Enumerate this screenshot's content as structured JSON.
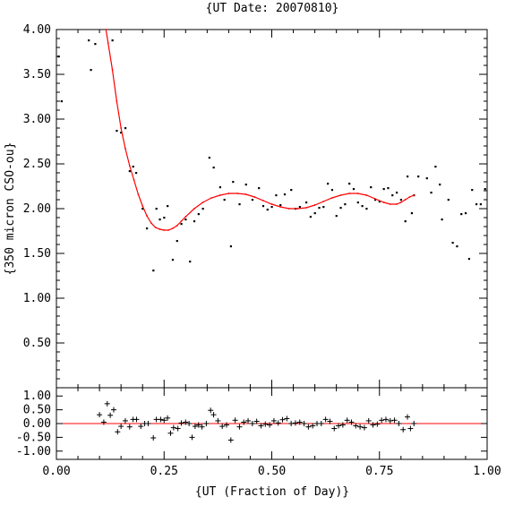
{
  "chart_data": [
    {
      "type": "scatter",
      "title": "{UT Date: 20070810}",
      "xlabel": "",
      "ylabel": "{350 micron CSO-ou}",
      "xlim": [
        0,
        1
      ],
      "ylim": [
        0,
        4
      ],
      "yticks": [
        "0.50",
        "1.00",
        "1.50",
        "2.00",
        "2.50",
        "3.00",
        "3.50",
        "4.00"
      ],
      "colors": {
        "points": "#000000",
        "fit": "#ff0000"
      },
      "series": [
        {
          "values": [
            {
              "x": 0.005,
              "y": 3.7
            },
            {
              "x": 0.012,
              "y": 3.2
            },
            {
              "x": 0.075,
              "y": 3.88
            },
            {
              "x": 0.08,
              "y": 3.55
            },
            {
              "x": 0.09,
              "y": 3.84
            },
            {
              "x": 0.13,
              "y": 3.88
            },
            {
              "x": 0.14,
              "y": 2.87
            },
            {
              "x": 0.15,
              "y": 2.85
            },
            {
              "x": 0.16,
              "y": 2.9
            },
            {
              "x": 0.17,
              "y": 2.42
            },
            {
              "x": 0.178,
              "y": 2.47
            },
            {
              "x": 0.185,
              "y": 2.4
            },
            {
              "x": 0.2,
              "y": 2.0
            },
            {
              "x": 0.21,
              "y": 1.78
            },
            {
              "x": 0.225,
              "y": 1.31
            },
            {
              "x": 0.232,
              "y": 2.0
            },
            {
              "x": 0.24,
              "y": 1.88
            },
            {
              "x": 0.25,
              "y": 1.9
            },
            {
              "x": 0.258,
              "y": 2.03
            },
            {
              "x": 0.27,
              "y": 1.43
            },
            {
              "x": 0.28,
              "y": 1.64
            },
            {
              "x": 0.29,
              "y": 1.83
            },
            {
              "x": 0.3,
              "y": 1.88
            },
            {
              "x": 0.31,
              "y": 1.41
            },
            {
              "x": 0.32,
              "y": 1.86
            },
            {
              "x": 0.33,
              "y": 1.94
            },
            {
              "x": 0.34,
              "y": 2.0
            },
            {
              "x": 0.355,
              "y": 2.57
            },
            {
              "x": 0.365,
              "y": 2.46
            },
            {
              "x": 0.38,
              "y": 2.24
            },
            {
              "x": 0.39,
              "y": 2.1
            },
            {
              "x": 0.405,
              "y": 1.58
            },
            {
              "x": 0.41,
              "y": 2.3
            },
            {
              "x": 0.425,
              "y": 2.05
            },
            {
              "x": 0.44,
              "y": 2.27
            },
            {
              "x": 0.455,
              "y": 2.1
            },
            {
              "x": 0.47,
              "y": 2.23
            },
            {
              "x": 0.48,
              "y": 2.03
            },
            {
              "x": 0.49,
              "y": 1.99
            },
            {
              "x": 0.5,
              "y": 2.02
            },
            {
              "x": 0.51,
              "y": 2.15
            },
            {
              "x": 0.52,
              "y": 2.04
            },
            {
              "x": 0.53,
              "y": 2.16
            },
            {
              "x": 0.545,
              "y": 2.21
            },
            {
              "x": 0.555,
              "y": 2.0
            },
            {
              "x": 0.565,
              "y": 2.02
            },
            {
              "x": 0.58,
              "y": 2.07
            },
            {
              "x": 0.59,
              "y": 1.91
            },
            {
              "x": 0.6,
              "y": 1.95
            },
            {
              "x": 0.61,
              "y": 2.01
            },
            {
              "x": 0.62,
              "y": 2.02
            },
            {
              "x": 0.63,
              "y": 2.28
            },
            {
              "x": 0.64,
              "y": 2.21
            },
            {
              "x": 0.65,
              "y": 1.92
            },
            {
              "x": 0.66,
              "y": 2.01
            },
            {
              "x": 0.67,
              "y": 2.05
            },
            {
              "x": 0.68,
              "y": 2.28
            },
            {
              "x": 0.69,
              "y": 2.22
            },
            {
              "x": 0.7,
              "y": 2.07
            },
            {
              "x": 0.71,
              "y": 2.03
            },
            {
              "x": 0.72,
              "y": 2.0
            },
            {
              "x": 0.73,
              "y": 2.24
            },
            {
              "x": 0.74,
              "y": 2.1
            },
            {
              "x": 0.75,
              "y": 2.08
            },
            {
              "x": 0.76,
              "y": 2.22
            },
            {
              "x": 0.77,
              "y": 2.23
            },
            {
              "x": 0.78,
              "y": 2.15
            },
            {
              "x": 0.79,
              "y": 2.18
            },
            {
              "x": 0.8,
              "y": 2.1
            },
            {
              "x": 0.81,
              "y": 1.86
            },
            {
              "x": 0.815,
              "y": 2.36
            },
            {
              "x": 0.825,
              "y": 1.95
            },
            {
              "x": 0.83,
              "y": 2.15
            },
            {
              "x": 0.84,
              "y": 2.36
            },
            {
              "x": 0.86,
              "y": 2.34
            },
            {
              "x": 0.87,
              "y": 2.18
            },
            {
              "x": 0.88,
              "y": 2.47
            },
            {
              "x": 0.89,
              "y": 2.27
            },
            {
              "x": 0.895,
              "y": 1.88
            },
            {
              "x": 0.91,
              "y": 2.1
            },
            {
              "x": 0.92,
              "y": 1.62
            },
            {
              "x": 0.93,
              "y": 1.58
            },
            {
              "x": 0.94,
              "y": 1.94
            },
            {
              "x": 0.95,
              "y": 1.95
            },
            {
              "x": 0.958,
              "y": 1.44
            },
            {
              "x": 0.965,
              "y": 2.21
            },
            {
              "x": 0.975,
              "y": 2.05
            },
            {
              "x": 0.985,
              "y": 2.05
            },
            {
              "x": 0.995,
              "y": 2.22
            }
          ]
        }
      ],
      "fit": {
        "type": "line",
        "xrange": [
          0.1,
          0.83
        ],
        "values": [
          {
            "x": 0.115,
            "y": 4.0
          },
          {
            "x": 0.12,
            "y": 3.85
          },
          {
            "x": 0.13,
            "y": 3.55
          },
          {
            "x": 0.14,
            "y": 3.2
          },
          {
            "x": 0.15,
            "y": 2.9
          },
          {
            "x": 0.16,
            "y": 2.67
          },
          {
            "x": 0.17,
            "y": 2.48
          },
          {
            "x": 0.18,
            "y": 2.32
          },
          {
            "x": 0.19,
            "y": 2.16
          },
          {
            "x": 0.2,
            "y": 2.03
          },
          {
            "x": 0.21,
            "y": 1.92
          },
          {
            "x": 0.22,
            "y": 1.84
          },
          {
            "x": 0.23,
            "y": 1.79
          },
          {
            "x": 0.24,
            "y": 1.77
          },
          {
            "x": 0.25,
            "y": 1.76
          },
          {
            "x": 0.26,
            "y": 1.76
          },
          {
            "x": 0.27,
            "y": 1.78
          },
          {
            "x": 0.28,
            "y": 1.81
          },
          {
            "x": 0.29,
            "y": 1.86
          },
          {
            "x": 0.3,
            "y": 1.91
          },
          {
            "x": 0.32,
            "y": 2.0
          },
          {
            "x": 0.34,
            "y": 2.07
          },
          {
            "x": 0.36,
            "y": 2.12
          },
          {
            "x": 0.38,
            "y": 2.15
          },
          {
            "x": 0.4,
            "y": 2.17
          },
          {
            "x": 0.42,
            "y": 2.17
          },
          {
            "x": 0.44,
            "y": 2.16
          },
          {
            "x": 0.46,
            "y": 2.13
          },
          {
            "x": 0.48,
            "y": 2.09
          },
          {
            "x": 0.5,
            "y": 2.05
          },
          {
            "x": 0.52,
            "y": 2.02
          },
          {
            "x": 0.54,
            "y": 2.0
          },
          {
            "x": 0.56,
            "y": 2.0
          },
          {
            "x": 0.58,
            "y": 2.01
          },
          {
            "x": 0.6,
            "y": 2.04
          },
          {
            "x": 0.62,
            "y": 2.08
          },
          {
            "x": 0.64,
            "y": 2.12
          },
          {
            "x": 0.66,
            "y": 2.15
          },
          {
            "x": 0.68,
            "y": 2.17
          },
          {
            "x": 0.7,
            "y": 2.17
          },
          {
            "x": 0.72,
            "y": 2.15
          },
          {
            "x": 0.74,
            "y": 2.11
          },
          {
            "x": 0.76,
            "y": 2.07
          },
          {
            "x": 0.775,
            "y": 2.05
          },
          {
            "x": 0.79,
            "y": 2.05
          },
          {
            "x": 0.8,
            "y": 2.07
          },
          {
            "x": 0.81,
            "y": 2.1
          },
          {
            "x": 0.82,
            "y": 2.13
          },
          {
            "x": 0.83,
            "y": 2.15
          }
        ]
      }
    },
    {
      "type": "scatter",
      "title": "",
      "xlabel": "{UT (Fraction of Day)}",
      "ylabel": "",
      "xlim": [
        0,
        1
      ],
      "ylim": [
        -1.3,
        1.3
      ],
      "xticks": [
        "0.00",
        "0.25",
        "0.50",
        "0.75",
        "1.00"
      ],
      "yticks": [
        "-1.00",
        "-0.50",
        "0.00",
        "0.50",
        "1.00"
      ],
      "zero_line": true,
      "colors": {
        "points": "#000000",
        "zero_line": "#ff0000"
      },
      "series": [
        {
          "values": [
            {
              "x": 0.1,
              "y": 0.32
            },
            {
              "x": 0.11,
              "y": 0.05
            },
            {
              "x": 0.118,
              "y": 0.72
            },
            {
              "x": 0.125,
              "y": 0.3
            },
            {
              "x": 0.133,
              "y": 0.5
            },
            {
              "x": 0.142,
              "y": -0.3
            },
            {
              "x": 0.15,
              "y": -0.1
            },
            {
              "x": 0.16,
              "y": 0.1
            },
            {
              "x": 0.17,
              "y": -0.12
            },
            {
              "x": 0.178,
              "y": 0.15
            },
            {
              "x": 0.186,
              "y": 0.15
            },
            {
              "x": 0.196,
              "y": -0.1
            },
            {
              "x": 0.205,
              "y": 0.0
            },
            {
              "x": 0.213,
              "y": 0.0
            },
            {
              "x": 0.225,
              "y": -0.52
            },
            {
              "x": 0.232,
              "y": 0.15
            },
            {
              "x": 0.242,
              "y": 0.15
            },
            {
              "x": 0.25,
              "y": 0.12
            },
            {
              "x": 0.258,
              "y": 0.2
            },
            {
              "x": 0.265,
              "y": -0.35
            },
            {
              "x": 0.272,
              "y": -0.15
            },
            {
              "x": 0.282,
              "y": -0.18
            },
            {
              "x": 0.29,
              "y": 0.02
            },
            {
              "x": 0.3,
              "y": 0.05
            },
            {
              "x": 0.308,
              "y": 0.0
            },
            {
              "x": 0.315,
              "y": -0.5
            },
            {
              "x": 0.322,
              "y": -0.1
            },
            {
              "x": 0.33,
              "y": -0.05
            },
            {
              "x": 0.338,
              "y": -0.12
            },
            {
              "x": 0.348,
              "y": 0.0
            },
            {
              "x": 0.358,
              "y": 0.48
            },
            {
              "x": 0.365,
              "y": 0.32
            },
            {
              "x": 0.375,
              "y": 0.1
            },
            {
              "x": 0.385,
              "y": -0.1
            },
            {
              "x": 0.395,
              "y": -0.05
            },
            {
              "x": 0.405,
              "y": -0.6
            },
            {
              "x": 0.415,
              "y": 0.12
            },
            {
              "x": 0.425,
              "y": -0.12
            },
            {
              "x": 0.435,
              "y": 0.05
            },
            {
              "x": 0.445,
              "y": 0.1
            },
            {
              "x": 0.455,
              "y": 0.0
            },
            {
              "x": 0.465,
              "y": 0.08
            },
            {
              "x": 0.475,
              "y": -0.08
            },
            {
              "x": 0.485,
              "y": -0.02
            },
            {
              "x": 0.495,
              "y": -0.05
            },
            {
              "x": 0.505,
              "y": 0.1
            },
            {
              "x": 0.515,
              "y": 0.02
            },
            {
              "x": 0.525,
              "y": 0.14
            },
            {
              "x": 0.535,
              "y": 0.18
            },
            {
              "x": 0.545,
              "y": 0.0
            },
            {
              "x": 0.555,
              "y": 0.02
            },
            {
              "x": 0.565,
              "y": 0.05
            },
            {
              "x": 0.575,
              "y": 0.0
            },
            {
              "x": 0.585,
              "y": -0.12
            },
            {
              "x": 0.595,
              "y": -0.08
            },
            {
              "x": 0.605,
              "y": 0.0
            },
            {
              "x": 0.615,
              "y": 0.0
            },
            {
              "x": 0.625,
              "y": 0.15
            },
            {
              "x": 0.635,
              "y": 0.08
            },
            {
              "x": 0.645,
              "y": -0.18
            },
            {
              "x": 0.655,
              "y": -0.08
            },
            {
              "x": 0.665,
              "y": -0.05
            },
            {
              "x": 0.675,
              "y": 0.12
            },
            {
              "x": 0.685,
              "y": 0.05
            },
            {
              "x": 0.695,
              "y": -0.08
            },
            {
              "x": 0.705,
              "y": -0.12
            },
            {
              "x": 0.715,
              "y": -0.15
            },
            {
              "x": 0.725,
              "y": 0.1
            },
            {
              "x": 0.735,
              "y": -0.05
            },
            {
              "x": 0.745,
              "y": -0.02
            },
            {
              "x": 0.755,
              "y": 0.12
            },
            {
              "x": 0.765,
              "y": 0.15
            },
            {
              "x": 0.775,
              "y": 0.1
            },
            {
              "x": 0.785,
              "y": 0.12
            },
            {
              "x": 0.795,
              "y": 0.0
            },
            {
              "x": 0.805,
              "y": -0.22
            },
            {
              "x": 0.815,
              "y": 0.24
            },
            {
              "x": 0.822,
              "y": -0.18
            },
            {
              "x": 0.83,
              "y": 0.0
            }
          ]
        }
      ]
    }
  ]
}
